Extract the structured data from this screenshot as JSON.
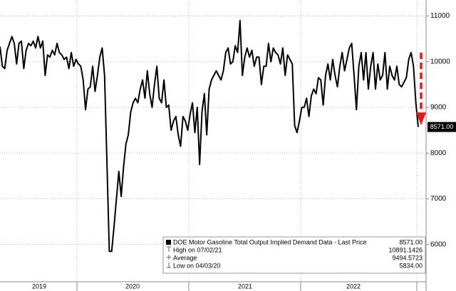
{
  "chart_data": {
    "type": "line",
    "series": [
      {
        "name": "DOE Motor Gasoline Total Output Implied Demand Data - Last Price",
        "color": "#000000",
        "values": [
          10330,
          9900,
          9850,
          10250,
          10400,
          10550,
          10400,
          9950,
          10400,
          10450,
          9850,
          10250,
          10400,
          10350,
          10450,
          10300,
          10550,
          10300,
          10450,
          9700,
          10150,
          10100,
          10250,
          10150,
          10400,
          10200,
          10150,
          10050,
          10100,
          9850,
          10200,
          9900,
          10050,
          9950,
          9900,
          9600,
          8950,
          9400,
          9450,
          9900,
          9350,
          9700,
          10100,
          10300,
          9700,
          7800,
          5850,
          5850,
          6400,
          7000,
          7600,
          7050,
          7700,
          8200,
          8400,
          8900,
          9100,
          9200,
          9100,
          9400,
          9600,
          9200,
          9800,
          9300,
          9000,
          9500,
          9900,
          9200,
          9100,
          9600,
          9000,
          9050,
          8500,
          8700,
          8800,
          8400,
          8150,
          8800,
          8700,
          8500,
          8850,
          9100,
          8450,
          9000,
          7750,
          8900,
          9300,
          8400,
          9400,
          9600,
          9700,
          9800,
          9700,
          9600,
          9800,
          10200,
          10300,
          9950,
          10000,
          10350,
          10200,
          10900,
          9700,
          10100,
          10300,
          10100,
          10250,
          9900,
          10100,
          10100,
          9500,
          9900,
          9900,
          10400,
          10000,
          10300,
          10200,
          10150,
          9950,
          10300,
          9700,
          10150,
          10050,
          9950,
          8600,
          8450,
          8700,
          9000,
          9000,
          9200,
          8800,
          9250,
          9400,
          9300,
          9650,
          9600,
          9050,
          9700,
          9950,
          9600,
          10050,
          9700,
          9450,
          9900,
          10200,
          9800,
          10050,
          10300,
          10400,
          9700,
          8950,
          9900,
          10200,
          9600,
          10200,
          9400,
          9900,
          10200,
          9400,
          9950,
          9600,
          9700,
          10200,
          9400,
          9900,
          9700,
          9600,
          9900,
          9500,
          9450,
          9550,
          9650,
          10050,
          10200,
          9900,
          9100,
          8571
        ]
      }
    ],
    "last_label": "8571.00",
    "x_labels": [
      "2019",
      "2020",
      "2021",
      "2022"
    ],
    "ylim": [
      5200,
      11350
    ],
    "yticks": [
      6000,
      7000,
      8000,
      9000,
      10000,
      11000
    ],
    "grid": true,
    "legend": {
      "rows": [
        {
          "label": "DOE Motor Gasoline Total Output Implied Demand Data - Last Price",
          "value": "8571.00"
        },
        {
          "label": "High on 07/02/21",
          "value": "10891.1426"
        },
        {
          "label": "Average",
          "value": "9494.5723"
        },
        {
          "label": "Low on 04/03/20",
          "value": "5834.00"
        }
      ]
    }
  }
}
